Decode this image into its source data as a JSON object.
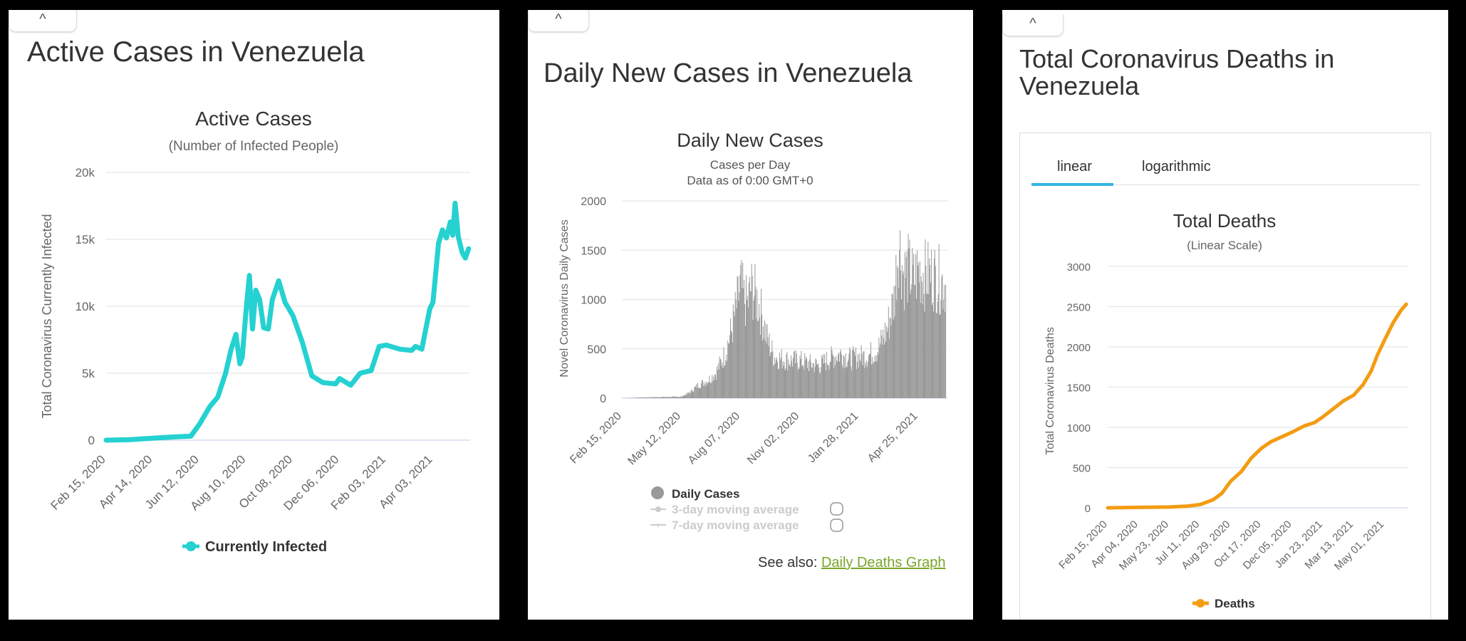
{
  "panels": {
    "active": {
      "title": "Active Cases in Venezuela",
      "collapse_glyph": "^"
    },
    "daily": {
      "title": "Daily New Cases in Venezuela",
      "collapse_glyph": "^",
      "see_also_label": "See also: ",
      "see_also_link": "Daily Deaths Graph"
    },
    "deaths": {
      "title_line1": "Total Coronavirus Deaths in",
      "title_line2": "Venezuela",
      "collapse_glyph": "^",
      "tabs": [
        "linear",
        "logarithmic"
      ],
      "active_tab": "linear"
    }
  },
  "colors": {
    "active_series": "#25d1d1",
    "bars": "#999999",
    "deaths_series": "#f39c12",
    "grid": "#e6e6e6",
    "axis": "#ccd6eb",
    "tab_underline": "#33b5e5",
    "link": "#7aa52a"
  },
  "chart_data": [
    {
      "type": "line",
      "title": "Active Cases",
      "subtitle": "(Number of Infected People)",
      "ylabel": "Total Coronavirus Currently Infected",
      "ylim": [
        0,
        20000
      ],
      "y_ticks": [
        "0",
        "5k",
        "10k",
        "15k",
        "20k"
      ],
      "y_tick_values": [
        0,
        5000,
        10000,
        15000,
        20000
      ],
      "x_ticks": [
        "Feb 15, 2020",
        "Apr 14, 2020",
        "Jun 12, 2020",
        "Aug 10, 2020",
        "Oct 08, 2020",
        "Dec 06, 2020",
        "Feb 03, 2021",
        "Apr 03, 2021"
      ],
      "x_range": [
        "2020-02-15",
        "2021-05-20"
      ],
      "legend": "bottom",
      "grid": true,
      "series": [
        {
          "name": "Currently Infected",
          "points": [
            [
              "2020-02-15",
              0
            ],
            [
              "2020-03-15",
              30
            ],
            [
              "2020-04-14",
              150
            ],
            [
              "2020-05-14",
              250
            ],
            [
              "2020-06-01",
              300
            ],
            [
              "2020-06-12",
              1200
            ],
            [
              "2020-06-25",
              2500
            ],
            [
              "2020-07-05",
              3200
            ],
            [
              "2020-07-15",
              5000
            ],
            [
              "2020-07-22",
              6800
            ],
            [
              "2020-07-28",
              7900
            ],
            [
              "2020-08-02",
              5700
            ],
            [
              "2020-08-05",
              6200
            ],
            [
              "2020-08-10",
              9800
            ],
            [
              "2020-08-14",
              12300
            ],
            [
              "2020-08-18",
              8300
            ],
            [
              "2020-08-22",
              11200
            ],
            [
              "2020-08-27",
              10500
            ],
            [
              "2020-09-01",
              8400
            ],
            [
              "2020-09-07",
              8300
            ],
            [
              "2020-09-12",
              10500
            ],
            [
              "2020-09-20",
              11900
            ],
            [
              "2020-09-28",
              10300
            ],
            [
              "2020-10-08",
              9300
            ],
            [
              "2020-10-20",
              7300
            ],
            [
              "2020-11-01",
              4800
            ],
            [
              "2020-11-15",
              4300
            ],
            [
              "2020-12-01",
              4200
            ],
            [
              "2020-12-06",
              4600
            ],
            [
              "2020-12-20",
              4100
            ],
            [
              "2021-01-01",
              5000
            ],
            [
              "2021-01-15",
              5200
            ],
            [
              "2021-01-25",
              7000
            ],
            [
              "2021-02-03",
              7100
            ],
            [
              "2021-02-20",
              6800
            ],
            [
              "2021-03-07",
              6700
            ],
            [
              "2021-03-12",
              7000
            ],
            [
              "2021-03-20",
              6800
            ],
            [
              "2021-03-30",
              9800
            ],
            [
              "2021-04-03",
              10300
            ],
            [
              "2021-04-10",
              14700
            ],
            [
              "2021-04-15",
              15700
            ],
            [
              "2021-04-20",
              15100
            ],
            [
              "2021-04-25",
              16300
            ],
            [
              "2021-04-28",
              15300
            ],
            [
              "2021-05-01",
              17700
            ],
            [
              "2021-05-05",
              15200
            ],
            [
              "2021-05-10",
              14000
            ],
            [
              "2021-05-14",
              13600
            ],
            [
              "2021-05-18",
              14300
            ]
          ]
        }
      ]
    },
    {
      "type": "bar",
      "title": "Daily New Cases",
      "subtitle": "Cases per Day",
      "subtitle2": "Data as of 0:00 GMT+0",
      "ylabel": "Novel Coronavirus Daily Cases",
      "ylim": [
        0,
        2000
      ],
      "y_ticks": [
        "0",
        "500",
        "1000",
        "1500",
        "2000"
      ],
      "y_tick_values": [
        0,
        500,
        1000,
        1500,
        2000
      ],
      "x_ticks": [
        "Feb 15, 2020",
        "May 12, 2020",
        "Aug 07, 2020",
        "Nov 02, 2020",
        "Jan 28, 2021",
        "Apr 25, 2021"
      ],
      "x_range": [
        "2020-02-15",
        "2021-06-07"
      ],
      "legend": "bottom",
      "legend_items": [
        "Daily Cases",
        "3-day moving average",
        "7-day moving average"
      ],
      "grid": true,
      "series": [
        {
          "name": "Daily Cases",
          "points": [
            [
              "2020-02-15",
              0
            ],
            [
              "2020-03-20",
              8
            ],
            [
              "2020-04-20",
              12
            ],
            [
              "2020-05-12",
              15
            ],
            [
              "2020-05-25",
              60
            ],
            [
              "2020-06-05",
              130
            ],
            [
              "2020-06-20",
              180
            ],
            [
              "2020-07-01",
              250
            ],
            [
              "2020-07-15",
              450
            ],
            [
              "2020-07-25",
              700
            ],
            [
              "2020-08-03",
              1000
            ],
            [
              "2020-08-07",
              1150
            ],
            [
              "2020-08-12",
              1000
            ],
            [
              "2020-08-17",
              950
            ],
            [
              "2020-08-22",
              1120
            ],
            [
              "2020-08-28",
              1050
            ],
            [
              "2020-09-05",
              900
            ],
            [
              "2020-09-15",
              600
            ],
            [
              "2020-09-25",
              420
            ],
            [
              "2020-10-05",
              400
            ],
            [
              "2020-10-20",
              380
            ],
            [
              "2020-11-02",
              380
            ],
            [
              "2020-11-15",
              350
            ],
            [
              "2020-12-01",
              330
            ],
            [
              "2020-12-15",
              400
            ],
            [
              "2021-01-01",
              450
            ],
            [
              "2021-01-15",
              400
            ],
            [
              "2021-01-28",
              420
            ],
            [
              "2021-02-10",
              430
            ],
            [
              "2021-02-25",
              500
            ],
            [
              "2021-03-10",
              700
            ],
            [
              "2021-03-20",
              1000
            ],
            [
              "2021-03-27",
              1600
            ],
            [
              "2021-04-03",
              1250
            ],
            [
              "2021-04-10",
              1300
            ],
            [
              "2021-04-18",
              1200
            ],
            [
              "2021-04-25",
              1300
            ],
            [
              "2021-05-03",
              1250
            ],
            [
              "2021-05-15",
              1250
            ],
            [
              "2021-05-25",
              1200
            ],
            [
              "2021-06-05",
              1150
            ]
          ]
        }
      ]
    },
    {
      "type": "line",
      "title": "Total Deaths",
      "subtitle": "(Linear Scale)",
      "ylabel": "Total Coronavirus Deaths",
      "ylim": [
        0,
        3000
      ],
      "y_ticks": [
        "0",
        "500",
        "1000",
        "1500",
        "2000",
        "2500",
        "3000"
      ],
      "y_tick_values": [
        0,
        500,
        1000,
        1500,
        2000,
        2500,
        3000
      ],
      "x_ticks": [
        "Feb 15, 2020",
        "Apr 04, 2020",
        "May 23, 2020",
        "Jul 11, 2020",
        "Aug 29, 2020",
        "Oct 17, 2020",
        "Dec 05, 2020",
        "Jan 23, 2021",
        "Mar 13, 2021",
        "May 01, 2021"
      ],
      "x_range": [
        "2020-02-15",
        "2021-06-07"
      ],
      "legend": "bottom",
      "grid": true,
      "series": [
        {
          "name": "Deaths",
          "points": [
            [
              "2020-02-15",
              0
            ],
            [
              "2020-04-04",
              5
            ],
            [
              "2020-05-23",
              10
            ],
            [
              "2020-06-20",
              20
            ],
            [
              "2020-07-11",
              40
            ],
            [
              "2020-08-01",
              100
            ],
            [
              "2020-08-15",
              180
            ],
            [
              "2020-08-29",
              330
            ],
            [
              "2020-09-15",
              450
            ],
            [
              "2020-10-01",
              620
            ],
            [
              "2020-10-17",
              740
            ],
            [
              "2020-11-01",
              820
            ],
            [
              "2020-11-15",
              870
            ],
            [
              "2020-12-05",
              940
            ],
            [
              "2020-12-25",
              1020
            ],
            [
              "2021-01-10",
              1060
            ],
            [
              "2021-01-23",
              1130
            ],
            [
              "2021-02-10",
              1240
            ],
            [
              "2021-02-25",
              1330
            ],
            [
              "2021-03-13",
              1400
            ],
            [
              "2021-03-28",
              1530
            ],
            [
              "2021-04-10",
              1700
            ],
            [
              "2021-04-20",
              1900
            ],
            [
              "2021-05-01",
              2080
            ],
            [
              "2021-05-15",
              2300
            ],
            [
              "2021-05-28",
              2460
            ],
            [
              "2021-06-05",
              2530
            ]
          ]
        }
      ]
    }
  ]
}
